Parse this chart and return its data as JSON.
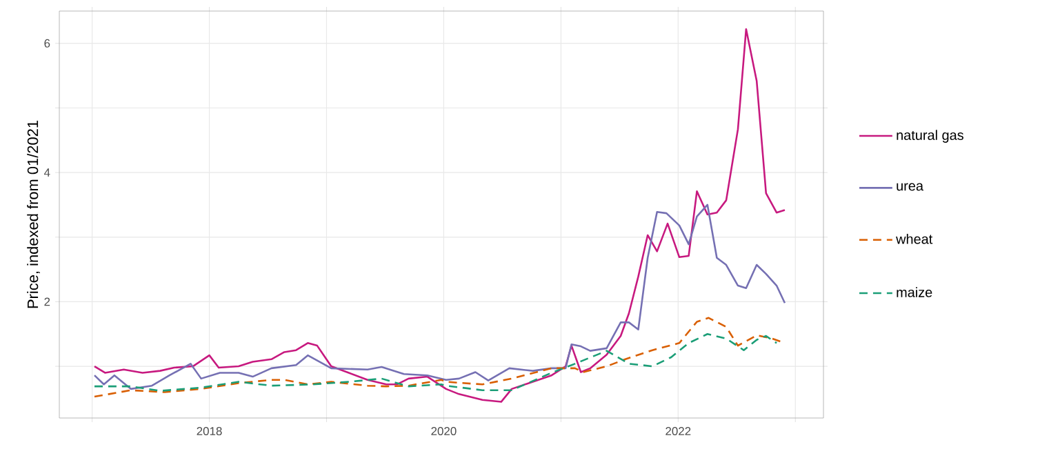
{
  "chart_data": {
    "type": "line",
    "ylabel": "Price, indexed from 01/2021",
    "xlim": [
      2016.72,
      2023.24
    ],
    "ylim": [
      0.2,
      6.5
    ],
    "xticks": [
      {
        "value": 2017,
        "label": null
      },
      2018,
      {
        "value": 2019,
        "label": null
      },
      2020,
      {
        "value": 2021,
        "label": null
      },
      2022,
      {
        "value": 2023,
        "label": null
      }
    ],
    "yticks": [
      {
        "value": 1,
        "label": null
      },
      2,
      {
        "value": 3,
        "label": null
      },
      4,
      {
        "value": 5,
        "label": null
      },
      6
    ],
    "grid": true,
    "legend": "right",
    "marker": "none",
    "series": [
      {
        "name": "natural gas",
        "color": "#c7197f",
        "line_style": "solid",
        "x": [
          2017.02,
          2017.11,
          2017.27,
          2017.43,
          2017.58,
          2017.7,
          2017.86,
          2018.0,
          2018.08,
          2018.25,
          2018.37,
          2018.53,
          2018.64,
          2018.74,
          2018.84,
          2018.92,
          2019.04,
          2019.19,
          2019.35,
          2019.51,
          2019.6,
          2019.7,
          2019.86,
          2020.02,
          2020.13,
          2020.33,
          2020.49,
          2020.58,
          2020.76,
          2020.92,
          2021.04,
          2021.09,
          2021.17,
          2021.25,
          2021.39,
          2021.51,
          2021.58,
          2021.66,
          2021.74,
          2021.82,
          2021.91,
          2022.01,
          2022.09,
          2022.16,
          2022.25,
          2022.33,
          2022.41,
          2022.51,
          2022.58,
          2022.67,
          2022.75,
          2022.84,
          2022.91
        ],
        "values": [
          1.0,
          0.9,
          0.95,
          0.9,
          0.93,
          0.98,
          1.0,
          1.17,
          0.98,
          1.0,
          1.07,
          1.11,
          1.22,
          1.25,
          1.36,
          1.32,
          1.0,
          0.9,
          0.79,
          0.72,
          0.72,
          0.81,
          0.84,
          0.65,
          0.57,
          0.48,
          0.45,
          0.65,
          0.76,
          0.86,
          1.0,
          1.32,
          0.91,
          0.97,
          1.18,
          1.47,
          1.82,
          2.39,
          3.03,
          2.78,
          3.21,
          2.69,
          2.71,
          3.71,
          3.35,
          3.38,
          3.57,
          4.67,
          6.22,
          5.42,
          3.68,
          3.38,
          3.42
        ]
      },
      {
        "name": "urea",
        "color": "#7570b3",
        "line_style": "solid",
        "x": [
          2017.02,
          2017.1,
          2017.19,
          2017.33,
          2017.51,
          2017.66,
          2017.84,
          2017.93,
          2018.09,
          2018.25,
          2018.37,
          2018.53,
          2018.74,
          2018.84,
          2019.04,
          2019.35,
          2019.47,
          2019.66,
          2019.86,
          2020.02,
          2020.13,
          2020.27,
          2020.38,
          2020.56,
          2020.76,
          2020.92,
          2021.04,
          2021.09,
          2021.17,
          2021.25,
          2021.39,
          2021.51,
          2021.58,
          2021.66,
          2021.74,
          2021.82,
          2021.9,
          2022.01,
          2022.09,
          2022.16,
          2022.25,
          2022.33,
          2022.41,
          2022.51,
          2022.58,
          2022.67,
          2022.75,
          2022.84,
          2022.91
        ],
        "values": [
          0.86,
          0.72,
          0.86,
          0.65,
          0.7,
          0.86,
          1.04,
          0.81,
          0.9,
          0.9,
          0.84,
          0.97,
          1.02,
          1.17,
          0.97,
          0.95,
          0.99,
          0.88,
          0.86,
          0.79,
          0.81,
          0.91,
          0.78,
          0.97,
          0.93,
          0.97,
          0.97,
          1.34,
          1.31,
          1.24,
          1.28,
          1.68,
          1.68,
          1.57,
          2.68,
          3.39,
          3.37,
          3.18,
          2.89,
          3.32,
          3.5,
          2.68,
          2.57,
          2.25,
          2.21,
          2.57,
          2.43,
          2.25,
          1.98
        ]
      },
      {
        "name": "wheat",
        "color": "#d95f02",
        "line_style": "dashed",
        "x": [
          2017.02,
          2017.33,
          2017.62,
          2017.93,
          2018.25,
          2018.53,
          2018.64,
          2018.84,
          2019.04,
          2019.35,
          2019.51,
          2019.7,
          2019.98,
          2020.02,
          2020.33,
          2020.58,
          2020.92,
          2021.12,
          2021.19,
          2021.39,
          2021.55,
          2021.78,
          2022.01,
          2022.16,
          2022.26,
          2022.41,
          2022.51,
          2022.58,
          2022.67,
          2022.8,
          2022.91
        ],
        "values": [
          0.53,
          0.63,
          0.6,
          0.65,
          0.74,
          0.79,
          0.79,
          0.72,
          0.76,
          0.7,
          0.69,
          0.7,
          0.79,
          0.76,
          0.72,
          0.81,
          0.97,
          0.97,
          0.91,
          1.0,
          1.11,
          1.25,
          1.36,
          1.69,
          1.75,
          1.61,
          1.32,
          1.39,
          1.48,
          1.43,
          1.36
        ]
      },
      {
        "name": "maize",
        "color": "#1b9e77",
        "line_style": "dashed",
        "x": [
          2017.02,
          2017.33,
          2017.58,
          2017.93,
          2018.25,
          2018.53,
          2018.88,
          2019.19,
          2019.47,
          2019.7,
          2019.98,
          2020.02,
          2020.33,
          2020.58,
          2020.92,
          2021.12,
          2021.39,
          2021.58,
          2021.78,
          2021.94,
          2022.09,
          2022.25,
          2022.41,
          2022.56,
          2022.67,
          2022.75,
          2022.84
        ],
        "values": [
          0.69,
          0.69,
          0.62,
          0.67,
          0.76,
          0.7,
          0.72,
          0.76,
          0.81,
          0.69,
          0.72,
          0.7,
          0.63,
          0.63,
          0.9,
          1.04,
          1.24,
          1.04,
          1.0,
          1.14,
          1.36,
          1.5,
          1.43,
          1.25,
          1.41,
          1.47,
          1.36
        ]
      }
    ]
  }
}
